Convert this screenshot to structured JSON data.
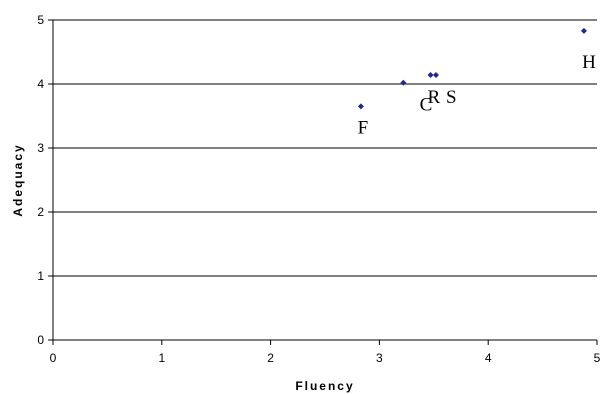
{
  "chart_data": {
    "type": "scatter",
    "title": "",
    "xlabel": "Fluency",
    "ylabel": "Adequacy",
    "xlim": [
      0,
      5
    ],
    "ylim": [
      0,
      5
    ],
    "x_ticks": [
      "0",
      "1",
      "2",
      "3",
      "4",
      "5"
    ],
    "y_ticks": [
      "0",
      "1",
      "2",
      "3",
      "4",
      "5"
    ],
    "grid": "horizontal",
    "legend": "none",
    "marker_color": "#1f2a8c",
    "points": [
      {
        "label": "F",
        "x": 2.83,
        "y": 3.65
      },
      {
        "label": "C",
        "x": 3.22,
        "y": 4.02
      },
      {
        "label": "R",
        "x": 3.47,
        "y": 4.14
      },
      {
        "label": "S",
        "x": 3.52,
        "y": 4.14
      },
      {
        "label": "H",
        "x": 4.88,
        "y": 4.83
      }
    ]
  }
}
